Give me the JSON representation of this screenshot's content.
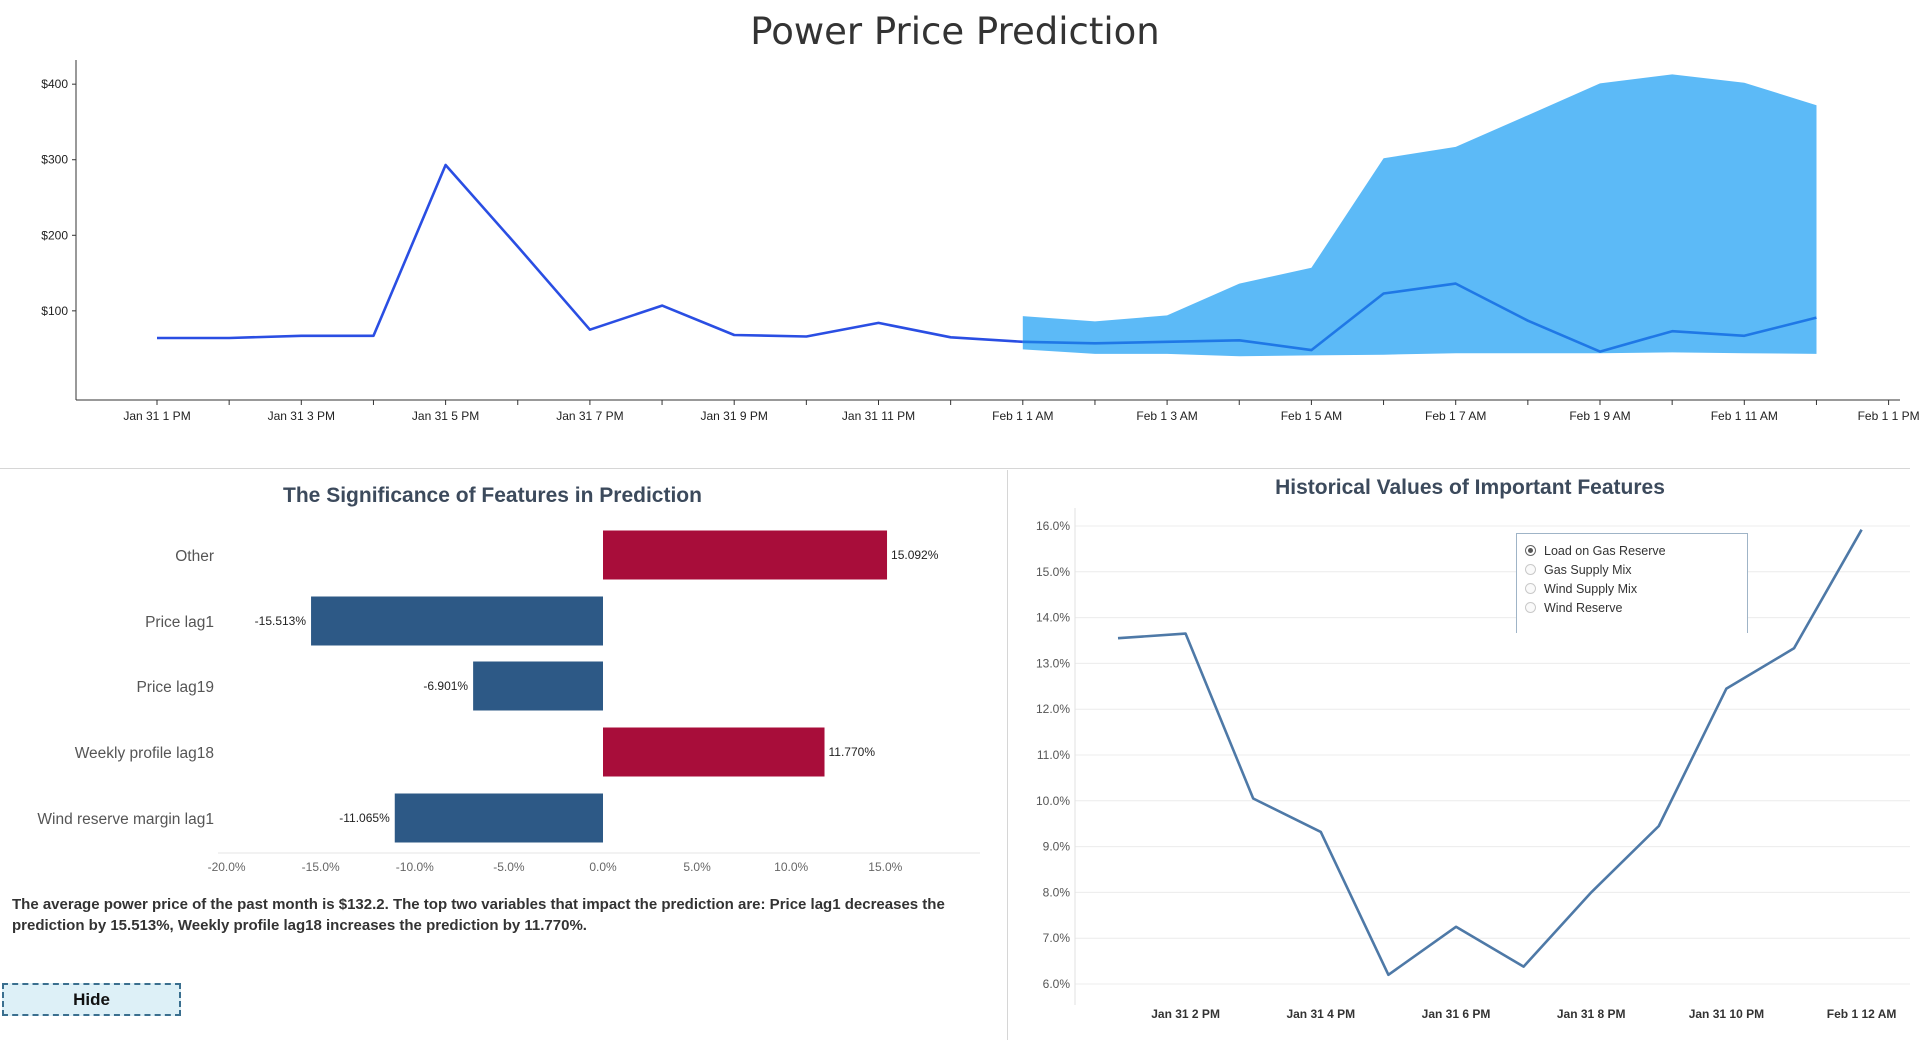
{
  "title": "Power Price Prediction",
  "colors": {
    "history_line": "#2a4ee3",
    "forecast_line": "#1f78e6",
    "forecast_band": "#5cbaf7",
    "bar_positive": "#a80d3a",
    "bar_negative": "#2d5986",
    "feature_line": "#4e79a7"
  },
  "price_chart": {
    "type": "line",
    "x_labels": [
      "Jan 31 1 PM",
      "Jan 31 3 PM",
      "Jan 31 5 PM",
      "Jan 31 7 PM",
      "Jan 31 9 PM",
      "Jan 31 11 PM",
      "Feb 1 1 AM",
      "Feb 1 3 AM",
      "Feb 1 5 AM",
      "Feb 1 7 AM",
      "Feb 1 9 AM",
      "Feb 1 11 AM",
      "Feb 1 1 PM"
    ],
    "y_ticks": [
      "$400",
      "$300",
      "$200",
      "$100"
    ],
    "y_tick_values": [
      400,
      300,
      200,
      100
    ],
    "ylim": [
      -18,
      432
    ],
    "history": {
      "x_hours": [
        13,
        14,
        15,
        16,
        17,
        18,
        19,
        20,
        21,
        22,
        23,
        24,
        25
      ],
      "values": [
        64,
        64,
        67,
        67,
        293,
        185,
        75,
        107,
        68,
        66,
        84,
        65,
        59
      ]
    },
    "forecast": {
      "x_hours": [
        25,
        26,
        27,
        28,
        29,
        30,
        31,
        32,
        33,
        34,
        35,
        36
      ],
      "values": [
        59,
        57,
        59,
        61,
        48,
        123,
        136,
        87,
        46,
        73,
        67,
        91
      ],
      "upper": [
        93,
        86,
        94,
        136,
        157,
        302,
        317,
        359,
        401,
        413,
        402,
        372
      ],
      "lower": [
        49,
        43,
        43,
        40,
        41,
        42,
        44,
        44,
        44,
        45,
        44,
        43
      ]
    }
  },
  "significance": {
    "title": "The Significance of Features in Prediction",
    "chart_data": {
      "type": "bar",
      "orientation": "horizontal",
      "categories": [
        "Other",
        "Price lag1",
        "Price lag19",
        "Weekly profile lag18",
        "Wind reserve margin lag1"
      ],
      "values": [
        15.092,
        -15.513,
        -6.901,
        11.77,
        -11.065
      ],
      "value_labels": [
        "15.092%",
        "-15.513%",
        "-6.901%",
        "11.770%",
        "-11.065%"
      ],
      "x_ticks": [
        "-20.0%",
        "-15.0%",
        "-10.0%",
        "-5.0%",
        "0.0%",
        "5.0%",
        "10.0%",
        "15.0%"
      ],
      "x_tick_values": [
        -20,
        -15,
        -10,
        -5,
        0,
        5,
        10,
        15
      ],
      "xlim": [
        -20,
        20
      ]
    }
  },
  "summary_text": "The average power price of the past month is $132.2. The top two variables that impact the prediction are: Price lag1 decreases the prediction by 15.513%, Weekly profile lag18 increases the prediction by 11.770%.",
  "hide_button": "Hide",
  "history": {
    "title": "Historical Values of Important Features",
    "legend": [
      {
        "label": "Load on Gas Reserve",
        "checked": true
      },
      {
        "label": "Gas Supply Mix",
        "checked": false
      },
      {
        "label": "Wind Supply Mix",
        "checked": false
      },
      {
        "label": "Wind Reserve",
        "checked": false
      }
    ],
    "chart_data": {
      "type": "line",
      "x_labels": [
        "Jan 31 2 PM",
        "Jan 31 4 PM",
        "Jan 31 6 PM",
        "Jan 31 8 PM",
        "Jan 31 10 PM",
        "Feb 1 12 AM"
      ],
      "y_ticks": [
        "16.0%",
        "15.0%",
        "14.0%",
        "13.0%",
        "12.0%",
        "11.0%",
        "10.0%",
        "9.0%",
        "8.0%",
        "7.0%",
        "6.0%"
      ],
      "y_tick_values": [
        16,
        15,
        14,
        13,
        12,
        11,
        10,
        9,
        8,
        7,
        6
      ],
      "ylim": [
        5.6,
        16.4
      ],
      "series": [
        {
          "x_hours": [
            13,
            14,
            15,
            16,
            17,
            18,
            19,
            20,
            21,
            22,
            23,
            24
          ],
          "values": [
            13.55,
            13.65,
            10.05,
            9.32,
            6.2,
            7.25,
            6.38,
            8.0,
            9.45,
            12.45,
            13.33,
            15.92
          ]
        }
      ]
    }
  }
}
